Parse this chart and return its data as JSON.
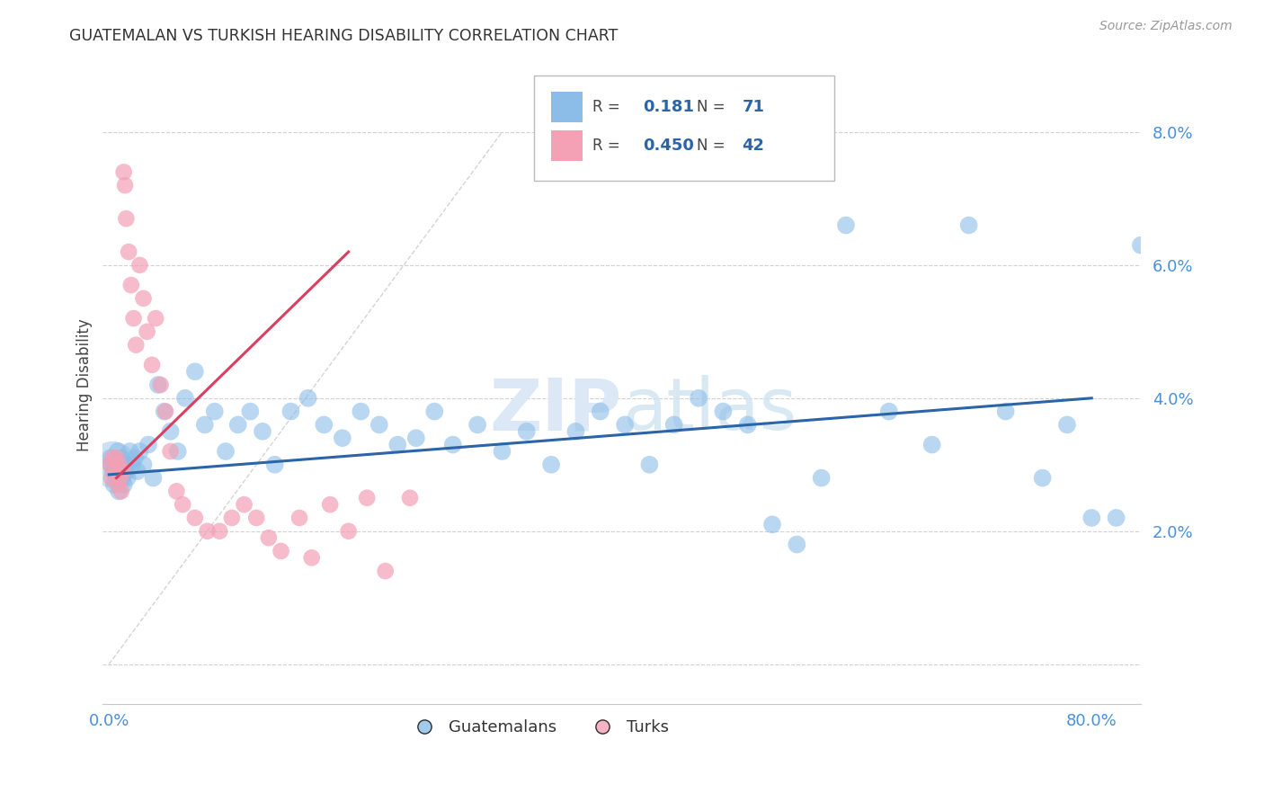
{
  "title": "GUATEMALAN VS TURKISH HEARING DISABILITY CORRELATION CHART",
  "source": "Source: ZipAtlas.com",
  "ylabel_label": "Hearing Disability",
  "blue_R": "0.181",
  "blue_N": "71",
  "pink_R": "0.450",
  "pink_N": "42",
  "blue_color": "#8BBDE8",
  "pink_color": "#F4A0B5",
  "blue_line_color": "#2B65A8",
  "pink_line_color": "#D94060",
  "diagonal_line_color": "#C8C8D0",
  "background_color": "#FFFFFF",
  "blue_scatter_x": [
    0.001,
    0.002,
    0.003,
    0.004,
    0.005,
    0.006,
    0.007,
    0.008,
    0.009,
    0.01,
    0.011,
    0.012,
    0.013,
    0.014,
    0.015,
    0.017,
    0.019,
    0.021,
    0.023,
    0.025,
    0.028,
    0.032,
    0.036,
    0.04,
    0.045,
    0.05,
    0.056,
    0.062,
    0.07,
    0.078,
    0.086,
    0.095,
    0.105,
    0.115,
    0.125,
    0.135,
    0.148,
    0.162,
    0.175,
    0.19,
    0.205,
    0.22,
    0.235,
    0.25,
    0.265,
    0.28,
    0.3,
    0.32,
    0.34,
    0.36,
    0.38,
    0.4,
    0.42,
    0.44,
    0.46,
    0.48,
    0.5,
    0.52,
    0.54,
    0.56,
    0.58,
    0.6,
    0.635,
    0.67,
    0.7,
    0.73,
    0.76,
    0.78,
    0.8,
    0.82,
    0.84
  ],
  "blue_scatter_y": [
    0.031,
    0.03,
    0.029,
    0.027,
    0.03,
    0.028,
    0.032,
    0.026,
    0.029,
    0.031,
    0.028,
    0.027,
    0.03,
    0.029,
    0.028,
    0.032,
    0.03,
    0.031,
    0.029,
    0.032,
    0.03,
    0.033,
    0.028,
    0.042,
    0.038,
    0.035,
    0.032,
    0.04,
    0.044,
    0.036,
    0.038,
    0.032,
    0.036,
    0.038,
    0.035,
    0.03,
    0.038,
    0.04,
    0.036,
    0.034,
    0.038,
    0.036,
    0.033,
    0.034,
    0.038,
    0.033,
    0.036,
    0.032,
    0.035,
    0.03,
    0.035,
    0.038,
    0.036,
    0.03,
    0.036,
    0.04,
    0.038,
    0.036,
    0.021,
    0.018,
    0.028,
    0.066,
    0.038,
    0.033,
    0.066,
    0.038,
    0.028,
    0.036,
    0.022,
    0.022,
    0.063
  ],
  "pink_scatter_x": [
    0.001,
    0.002,
    0.003,
    0.005,
    0.006,
    0.007,
    0.008,
    0.009,
    0.01,
    0.011,
    0.012,
    0.013,
    0.014,
    0.016,
    0.018,
    0.02,
    0.022,
    0.025,
    0.028,
    0.031,
    0.035,
    0.038,
    0.042,
    0.046,
    0.05,
    0.055,
    0.06,
    0.07,
    0.08,
    0.09,
    0.1,
    0.11,
    0.12,
    0.13,
    0.14,
    0.155,
    0.165,
    0.18,
    0.195,
    0.21,
    0.225,
    0.245
  ],
  "pink_scatter_y": [
    0.03,
    0.028,
    0.031,
    0.029,
    0.031,
    0.027,
    0.03,
    0.028,
    0.026,
    0.029,
    0.074,
    0.072,
    0.067,
    0.062,
    0.057,
    0.052,
    0.048,
    0.06,
    0.055,
    0.05,
    0.045,
    0.052,
    0.042,
    0.038,
    0.032,
    0.026,
    0.024,
    0.022,
    0.02,
    0.02,
    0.022,
    0.024,
    0.022,
    0.019,
    0.017,
    0.022,
    0.016,
    0.024,
    0.02,
    0.025,
    0.014,
    0.025
  ],
  "blue_line_x": [
    0.0,
    0.8
  ],
  "blue_line_y": [
    0.0285,
    0.04
  ],
  "pink_line_x": [
    0.006,
    0.195
  ],
  "pink_line_y": [
    0.028,
    0.062
  ],
  "diag_line_x": [
    0.0,
    0.32
  ],
  "diag_line_y": [
    0.0,
    0.08
  ],
  "xlim": [
    -0.005,
    0.84
  ],
  "ylim": [
    -0.006,
    0.09
  ]
}
